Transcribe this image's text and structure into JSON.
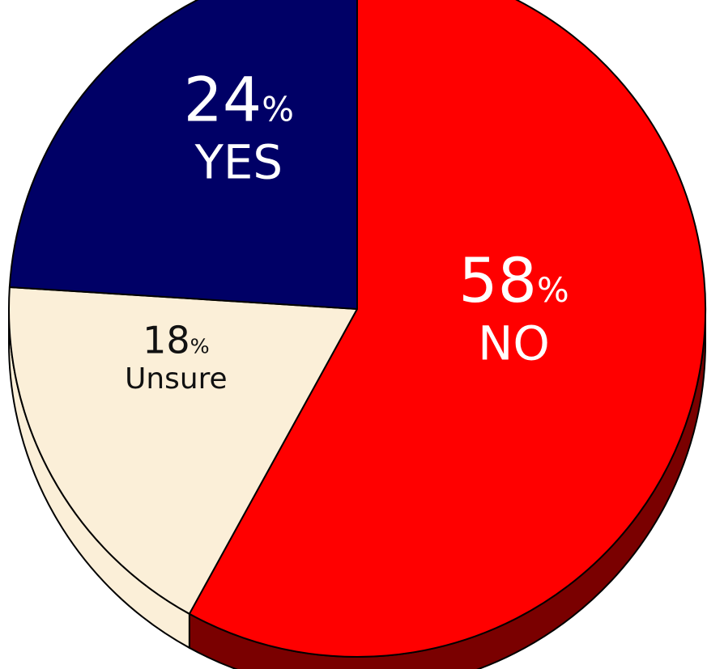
{
  "chart_data": {
    "type": "pie",
    "title": "",
    "start_angle_deg": 0,
    "direction": "clockwise",
    "slices": [
      {
        "label": "NO",
        "value": 58,
        "value_text": "58",
        "percent_sign": "%",
        "color": "#ff0000",
        "side_color": "#7a0000",
        "text_color": "#ffffff"
      },
      {
        "label": "Unsure",
        "value": 18,
        "value_text": "18",
        "percent_sign": "%",
        "color": "#fbefd8",
        "side_color": "#fbefd8",
        "text_color": "#111111"
      },
      {
        "label": "YES",
        "value": 24,
        "value_text": "24",
        "percent_sign": "%",
        "color": "#000066",
        "side_color": "#000044",
        "text_color": "#ffffff"
      }
    ],
    "edge_color": "#000000"
  }
}
